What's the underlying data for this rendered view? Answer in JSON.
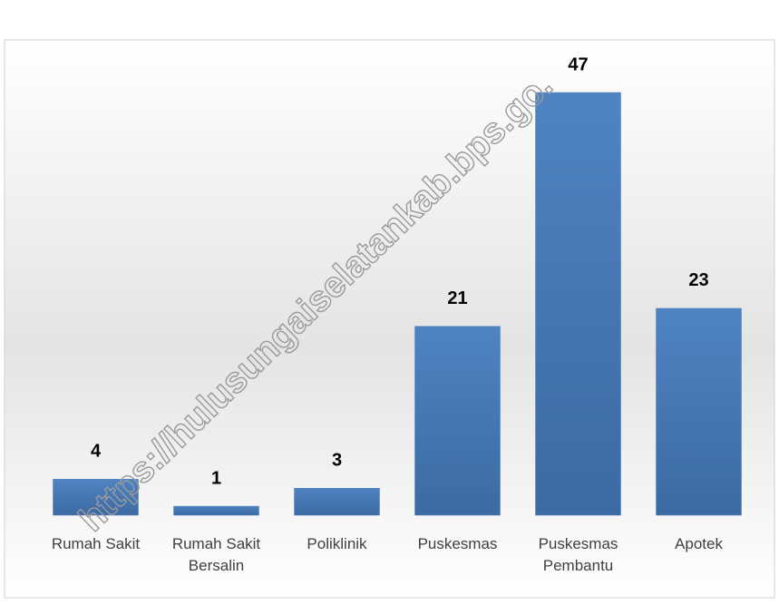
{
  "chart_data": {
    "type": "bar",
    "categories": [
      "Rumah Sakit",
      "Rumah Sakit Bersalin",
      "Poliklinik",
      "Puskesmas",
      "Puskesmas Pembantu",
      "Apotek"
    ],
    "values": [
      4,
      1,
      3,
      21,
      47,
      23
    ],
    "color": "#4a7ebb",
    "watermark": "https://hulusungaiselatankab.bps.go."
  }
}
